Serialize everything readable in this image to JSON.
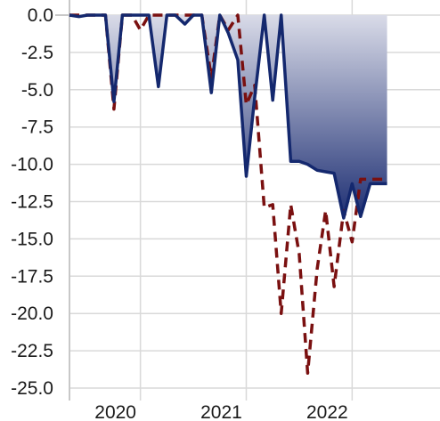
{
  "chart_data": {
    "type": "area",
    "title": "",
    "xlabel": "",
    "ylabel": "",
    "xlim": [
      2019.33,
      2022.83
    ],
    "ylim": [
      -25,
      0
    ],
    "grid": true,
    "legend": "none",
    "x_ticks": [
      {
        "value": 2020,
        "label": "2020"
      },
      {
        "value": 2021,
        "label": "2021"
      },
      {
        "value": 2022,
        "label": "2022"
      }
    ],
    "y_ticks": [
      {
        "value": 0,
        "label": "0.0"
      },
      {
        "value": -2.5,
        "label": "-2.5"
      },
      {
        "value": -5,
        "label": "-5.0"
      },
      {
        "value": -7.5,
        "label": "-7.5"
      },
      {
        "value": -10,
        "label": "-10.0"
      },
      {
        "value": -12.5,
        "label": "-12.5"
      },
      {
        "value": -15,
        "label": "-15.0"
      },
      {
        "value": -17.5,
        "label": "-17.5"
      },
      {
        "value": -20,
        "label": "-20.0"
      },
      {
        "value": -22.5,
        "label": "-22.5"
      },
      {
        "value": -25,
        "label": "-25.0"
      }
    ],
    "series": [
      {
        "style": "solid-area",
        "color": "#14286e",
        "fill_top": "#d9dbe8",
        "fill_bottom": "#1e2f73",
        "x": [
          2019.33,
          2019.42,
          2019.5,
          2019.58,
          2019.67,
          2019.75,
          2019.83,
          2019.92,
          2020.0,
          2020.08,
          2020.17,
          2020.25,
          2020.33,
          2020.42,
          2020.5,
          2020.58,
          2020.67,
          2020.75,
          2020.83,
          2020.92,
          2021.0,
          2021.08,
          2021.17,
          2021.25,
          2021.33,
          2021.42,
          2021.5,
          2021.58,
          2021.67,
          2021.75,
          2021.83,
          2021.92,
          2022.0,
          2022.08,
          2022.17,
          2022.25,
          2022.33
        ],
        "y": [
          0,
          -0.1,
          0,
          0,
          0,
          -5.8,
          0,
          0,
          0,
          0,
          -4.8,
          0,
          0,
          -0.6,
          0,
          0,
          -5.2,
          0,
          -1.2,
          -3,
          -10.8,
          -5.5,
          0,
          -5.7,
          0,
          -9.8,
          -9.8,
          -10,
          -10.4,
          -10.5,
          -10.6,
          -13.6,
          -11.3,
          -13.5,
          -11.3,
          -11.3,
          -11.3
        ]
      },
      {
        "style": "dashed",
        "color": "#7a1010",
        "x": [
          2019.33,
          2019.42,
          2019.5,
          2019.58,
          2019.67,
          2019.75,
          2019.83,
          2019.92,
          2020.0,
          2020.08,
          2020.17,
          2020.25,
          2020.33,
          2020.42,
          2020.5,
          2020.58,
          2020.67,
          2020.75,
          2020.83,
          2020.92,
          2021.0,
          2021.08,
          2021.17,
          2021.25,
          2021.33,
          2021.42,
          2021.5,
          2021.58,
          2021.67,
          2021.75,
          2021.83,
          2021.92,
          2022.0,
          2022.08,
          2022.17,
          2022.25,
          2022.33
        ],
        "y": [
          0,
          0,
          0,
          0,
          0,
          -6.3,
          0,
          0,
          -1.0,
          0,
          0,
          0,
          0,
          0,
          0,
          0,
          -4.2,
          0,
          -1.0,
          0,
          -6.0,
          -4.7,
          -12.9,
          -12.7,
          -20.0,
          -12.7,
          -16.0,
          -24.0,
          -17.0,
          -13.1,
          -18.2,
          -13.1,
          -15.2,
          -11.0,
          -11.0,
          -11.0,
          -11.0
        ]
      }
    ]
  }
}
